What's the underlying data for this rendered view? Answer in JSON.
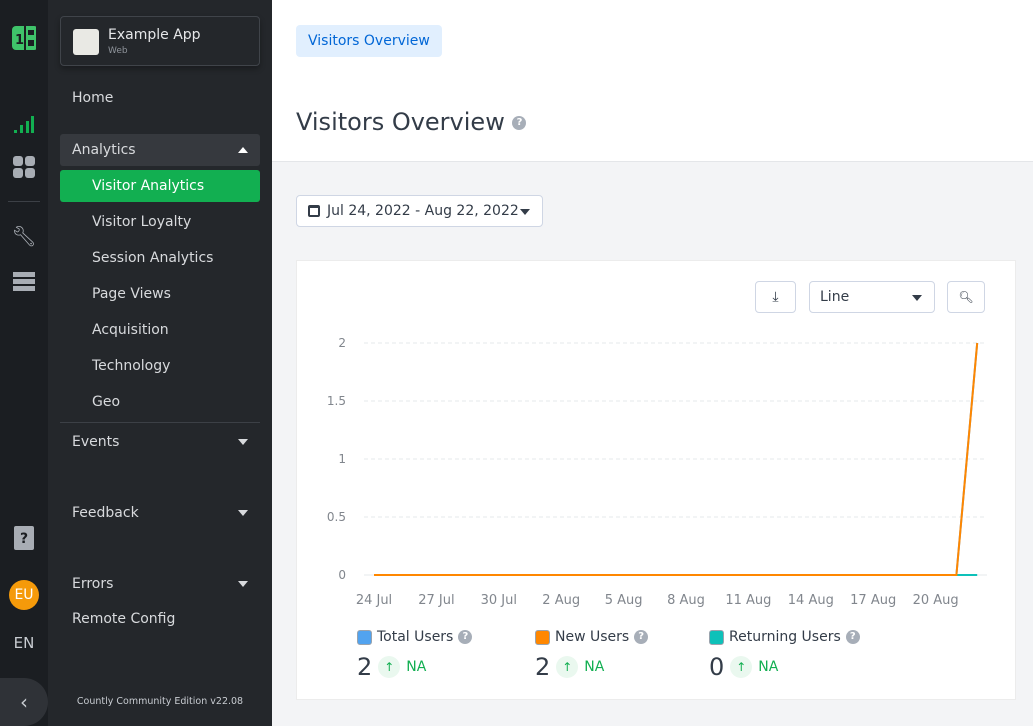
{
  "rail": {
    "lang": "EN",
    "avatar": "EU"
  },
  "sidebar": {
    "app_name": "Example App",
    "app_type": "Web",
    "home": "Home",
    "analytics": "Analytics",
    "analytics_items": [
      "Visitor Analytics",
      "Visitor Loyalty",
      "Session Analytics",
      "Page Views",
      "Acquisition",
      "Technology",
      "Geo"
    ],
    "events": "Events",
    "feedback": "Feedback",
    "errors": "Errors",
    "remote_config": "Remote Config",
    "footer": "Countly Community Edition v22.08"
  },
  "header": {
    "tab": "Visitors Overview",
    "title": "Visitors Overview"
  },
  "filters": {
    "date_range": "Jul 24, 2022 - Aug 22, 2022"
  },
  "toolbar": {
    "chart_type": "Line"
  },
  "chart_data": {
    "type": "line",
    "x": [
      "24 Jul",
      "25 Jul",
      "26 Jul",
      "27 Jul",
      "28 Jul",
      "29 Jul",
      "30 Jul",
      "31 Jul",
      "1 Aug",
      "2 Aug",
      "3 Aug",
      "4 Aug",
      "5 Aug",
      "6 Aug",
      "7 Aug",
      "8 Aug",
      "9 Aug",
      "10 Aug",
      "11 Aug",
      "12 Aug",
      "13 Aug",
      "14 Aug",
      "15 Aug",
      "16 Aug",
      "17 Aug",
      "18 Aug",
      "19 Aug",
      "20 Aug",
      "21 Aug",
      "22 Aug"
    ],
    "xticks": [
      "24 Jul",
      "27 Jul",
      "30 Jul",
      "2 Aug",
      "5 Aug",
      "8 Aug",
      "11 Aug",
      "14 Aug",
      "17 Aug",
      "20 Aug"
    ],
    "yticks": [
      "0",
      "0.5",
      "1",
      "1.5",
      "2"
    ],
    "ylim": [
      0,
      2
    ],
    "grid": true,
    "series": [
      {
        "name": "Total Users",
        "color": "#52a3ef",
        "values": [
          0,
          0,
          0,
          0,
          0,
          0,
          0,
          0,
          0,
          0,
          0,
          0,
          0,
          0,
          0,
          0,
          0,
          0,
          0,
          0,
          0,
          0,
          0,
          0,
          0,
          0,
          0,
          0,
          0,
          2
        ]
      },
      {
        "name": "New Users",
        "color": "#ff8700",
        "values": [
          0,
          0,
          0,
          0,
          0,
          0,
          0,
          0,
          0,
          0,
          0,
          0,
          0,
          0,
          0,
          0,
          0,
          0,
          0,
          0,
          0,
          0,
          0,
          0,
          0,
          0,
          0,
          0,
          0,
          2
        ]
      },
      {
        "name": "Returning Users",
        "color": "#0ec1b9",
        "values": [
          0,
          0,
          0,
          0,
          0,
          0,
          0,
          0,
          0,
          0,
          0,
          0,
          0,
          0,
          0,
          0,
          0,
          0,
          0,
          0,
          0,
          0,
          0,
          0,
          0,
          0,
          0,
          0,
          0,
          0
        ]
      }
    ]
  },
  "metrics": [
    {
      "label": "Total Users",
      "value": "2",
      "trend": "NA"
    },
    {
      "label": "New Users",
      "value": "2",
      "trend": "NA"
    },
    {
      "label": "Returning Users",
      "value": "0",
      "trend": "NA"
    }
  ]
}
